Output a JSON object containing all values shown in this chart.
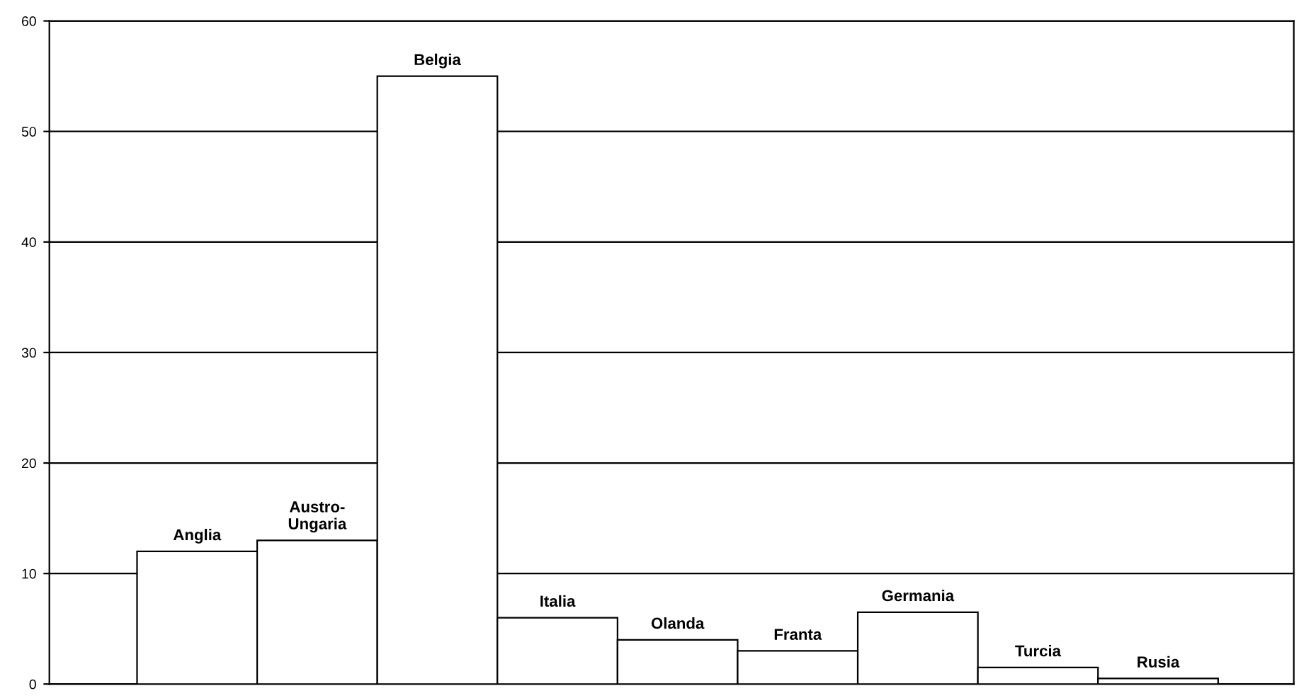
{
  "chart_data": {
    "type": "bar",
    "categories": [
      null,
      null,
      null,
      null,
      null,
      null,
      null,
      null,
      null
    ],
    "values": [
      12,
      13,
      55,
      6,
      4,
      3,
      6.5,
      1.5,
      0.5
    ],
    "value_labels": [
      "Anglia",
      "Austro-\nUngaria",
      "Belgia",
      "Italia",
      "Olanda",
      "Franta",
      "Germania",
      "Turcia",
      "Rusia"
    ],
    "color": "#ffffff",
    "ylim": [
      0,
      60
    ],
    "yticks": [
      0,
      10,
      20,
      30,
      40,
      50,
      60
    ],
    "grid": "y",
    "tick_labels": "y",
    "legend": false
  }
}
